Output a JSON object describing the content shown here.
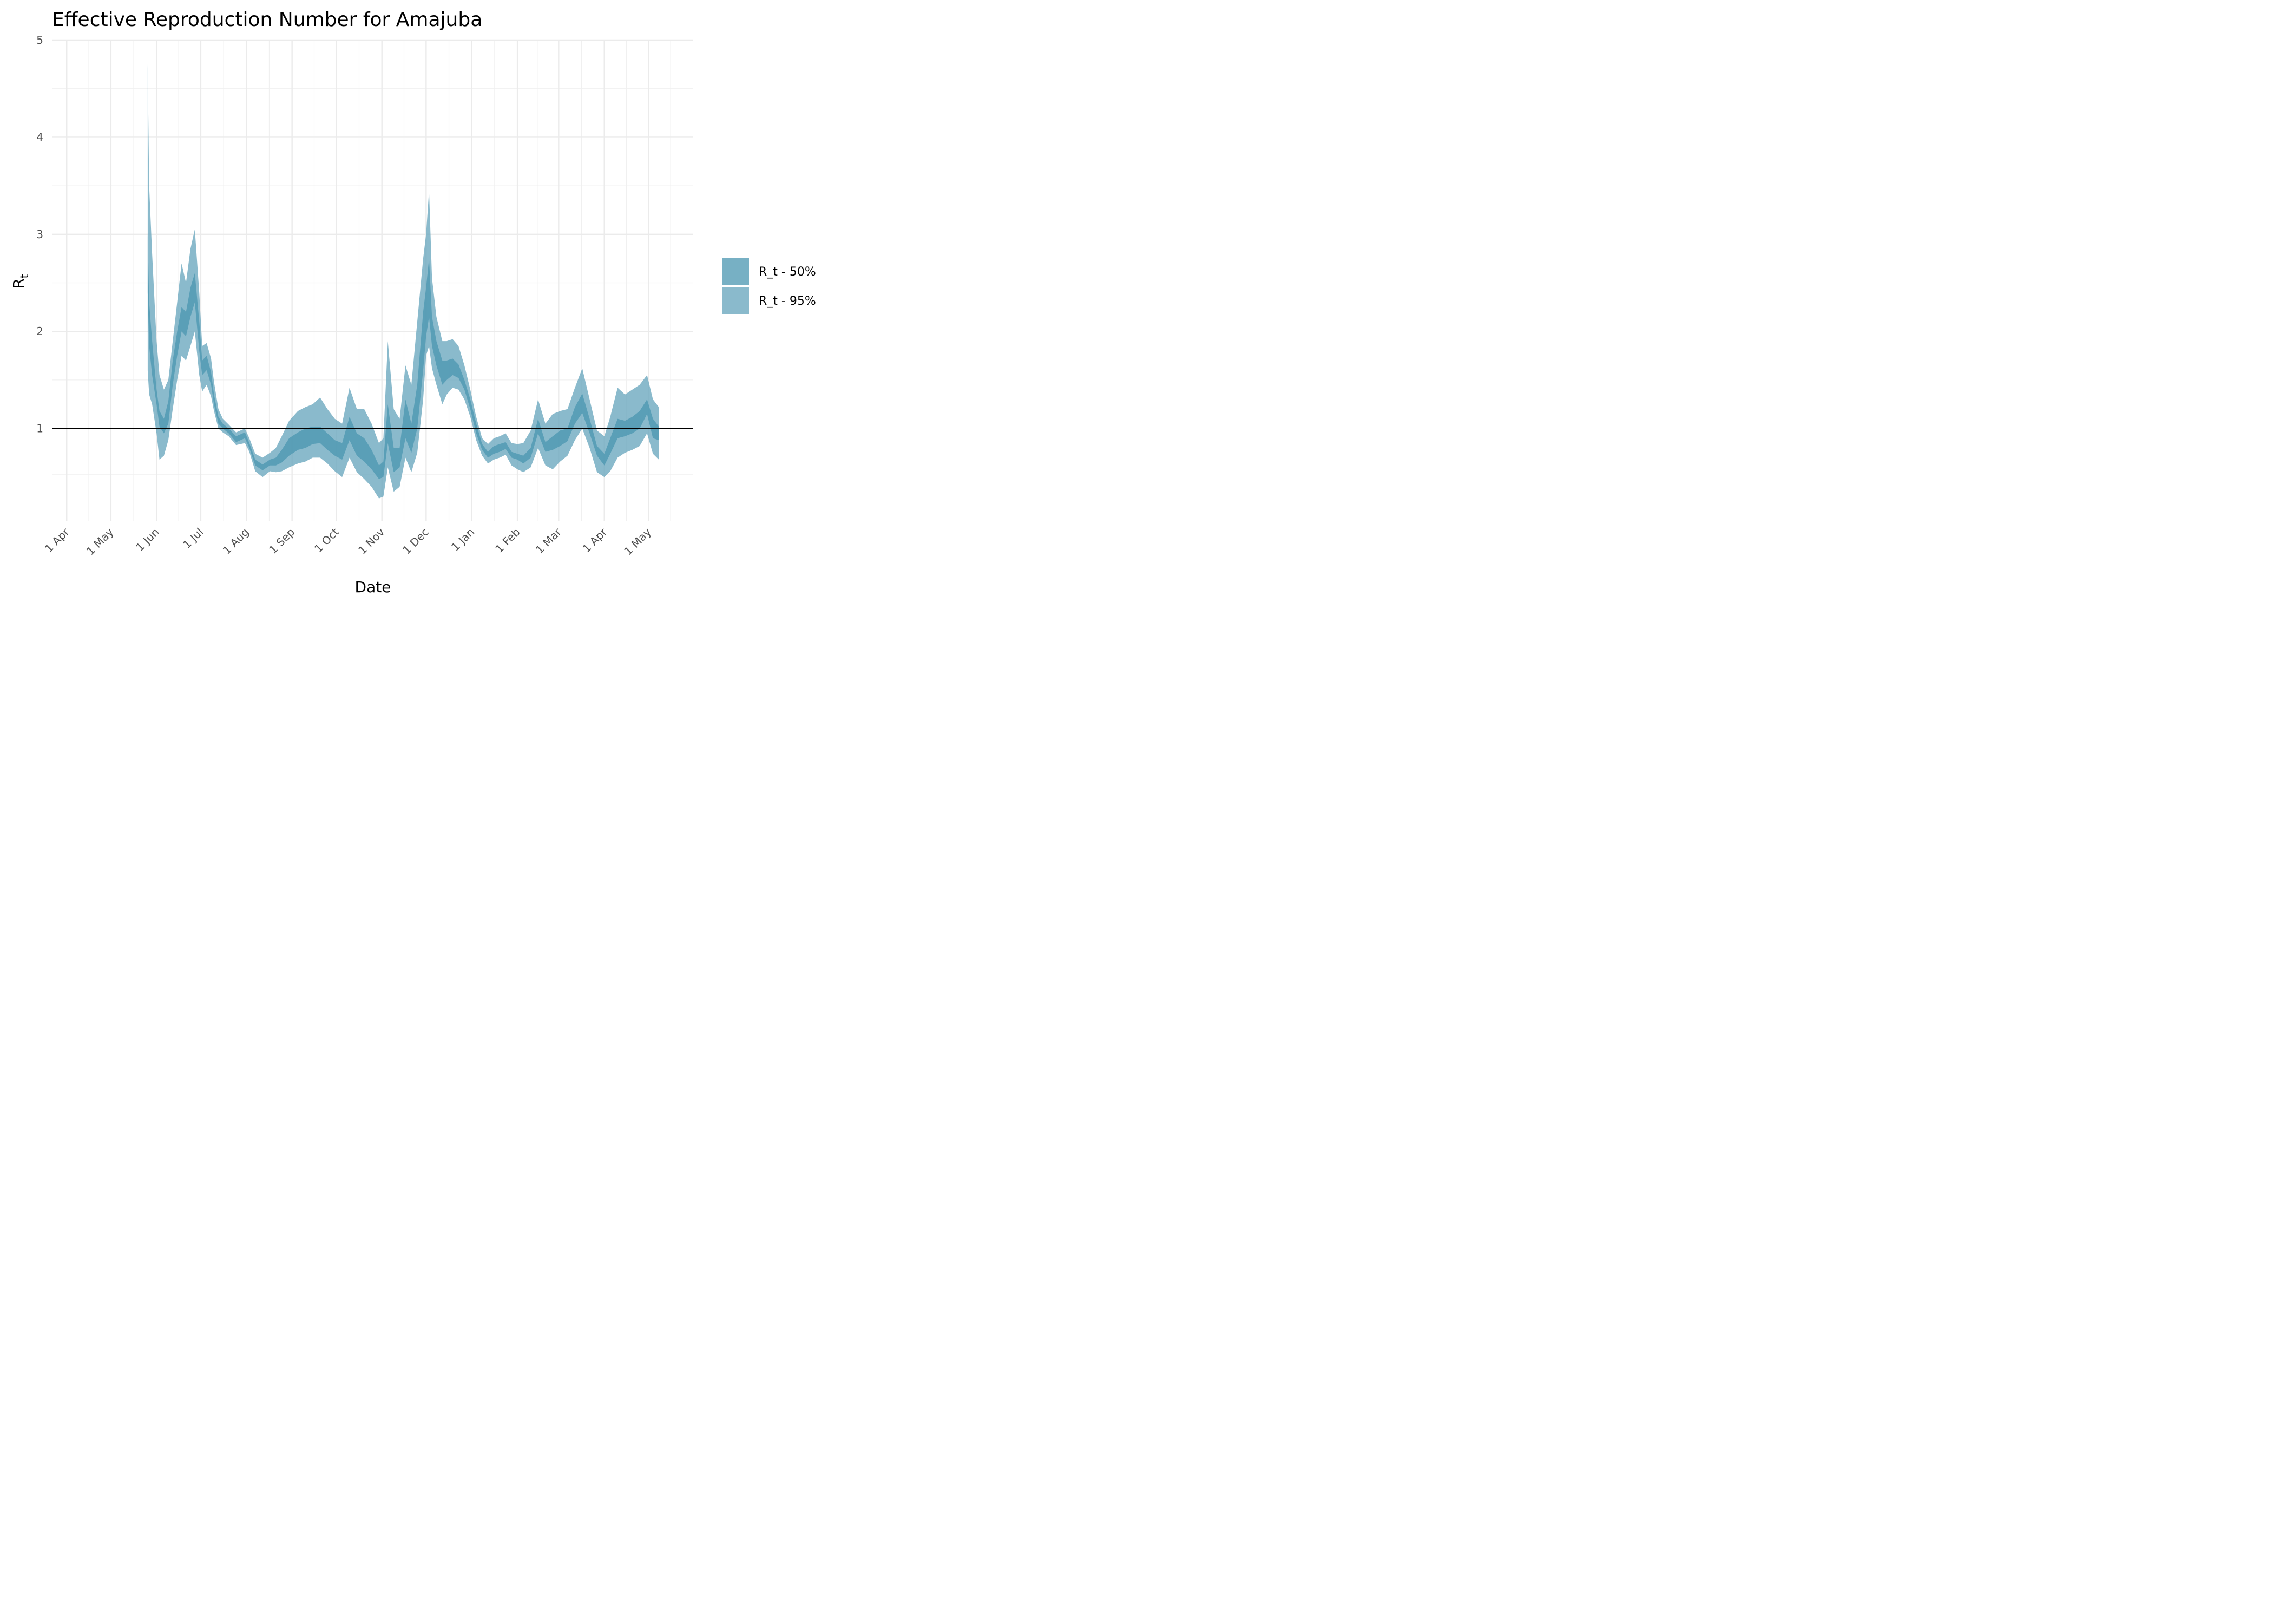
{
  "chart_data": {
    "type": "area",
    "title": "Effective Reproduction Number for Amajuba",
    "xlabel": "Date",
    "ylabel": {
      "main": "R",
      "sub": "t"
    },
    "ylim": [
      0.05,
      5
    ],
    "yticks": [
      1,
      2,
      3,
      4,
      5
    ],
    "xlim": [
      "2020-03-22",
      "2021-05-31"
    ],
    "xticks": [
      {
        "date": "2020-04-01",
        "label": "1 Apr"
      },
      {
        "date": "2020-05-01",
        "label": "1 May"
      },
      {
        "date": "2020-06-01",
        "label": "1 Jun"
      },
      {
        "date": "2020-07-01",
        "label": "1 Jul"
      },
      {
        "date": "2020-08-01",
        "label": "1 Aug"
      },
      {
        "date": "2020-09-01",
        "label": "1 Sep"
      },
      {
        "date": "2020-10-01",
        "label": "1 Oct"
      },
      {
        "date": "2020-11-01",
        "label": "1 Nov"
      },
      {
        "date": "2020-12-01",
        "label": "1 Dec"
      },
      {
        "date": "2021-01-01",
        "label": "1 Jan"
      },
      {
        "date": "2021-02-01",
        "label": "1 Feb"
      },
      {
        "date": "2021-03-01",
        "label": "1 Mar"
      },
      {
        "date": "2021-04-01",
        "label": "1 Apr"
      },
      {
        "date": "2021-05-01",
        "label": "1 May"
      }
    ],
    "grid": true,
    "legend_position": "right",
    "reference_line": {
      "y": 1,
      "color": "#000000"
    },
    "series": [
      {
        "name": "R_t - 50%",
        "color": "#4a96b0",
        "opacity": 0.75,
        "dates": [
          "2020-05-26",
          "2020-05-27",
          "2020-05-29",
          "2020-06-01",
          "2020-06-03",
          "2020-06-06",
          "2020-06-09",
          "2020-06-12",
          "2020-06-15",
          "2020-06-18",
          "2020-06-21",
          "2020-06-24",
          "2020-06-27",
          "2020-06-30",
          "2020-07-02",
          "2020-07-05",
          "2020-07-08",
          "2020-07-10",
          "2020-07-13",
          "2020-07-16",
          "2020-07-20",
          "2020-07-25",
          "2020-07-31",
          "2020-08-03",
          "2020-08-07",
          "2020-08-12",
          "2020-08-17",
          "2020-08-21",
          "2020-08-25",
          "2020-08-30",
          "2020-09-05",
          "2020-09-10",
          "2020-09-15",
          "2020-09-20",
          "2020-09-25",
          "2020-09-30",
          "2020-10-05",
          "2020-10-10",
          "2020-10-15",
          "2020-10-20",
          "2020-10-25",
          "2020-10-30",
          "2020-11-02",
          "2020-11-05",
          "2020-11-09",
          "2020-11-13",
          "2020-11-17",
          "2020-11-21",
          "2020-11-25",
          "2020-11-29",
          "2020-12-01",
          "2020-12-03",
          "2020-12-05",
          "2020-12-08",
          "2020-12-12",
          "2020-12-15",
          "2020-12-19",
          "2020-12-23",
          "2020-12-27",
          "2020-12-31",
          "2021-01-04",
          "2021-01-08",
          "2021-01-12",
          "2021-01-16",
          "2021-01-20",
          "2021-01-24",
          "2021-01-28",
          "2021-02-01",
          "2021-02-05",
          "2021-02-10",
          "2021-02-15",
          "2021-02-20",
          "2021-02-25",
          "2021-03-02",
          "2021-03-07",
          "2021-03-12",
          "2021-03-17",
          "2021-03-22",
          "2021-03-27",
          "2021-04-01",
          "2021-04-05",
          "2021-04-10",
          "2021-04-15",
          "2021-04-20",
          "2021-04-25",
          "2021-04-30",
          "2021-05-04",
          "2021-05-08"
        ],
        "lower": [
          2.4,
          1.85,
          1.55,
          1.25,
          1.02,
          0.95,
          1.05,
          1.45,
          1.75,
          2.0,
          1.95,
          2.15,
          2.3,
          1.8,
          1.55,
          1.6,
          1.45,
          1.25,
          1.05,
          1.0,
          0.95,
          0.86,
          0.9,
          0.8,
          0.62,
          0.57,
          0.62,
          0.62,
          0.65,
          0.72,
          0.78,
          0.8,
          0.84,
          0.85,
          0.78,
          0.72,
          0.68,
          0.88,
          0.72,
          0.66,
          0.58,
          0.48,
          0.5,
          0.85,
          0.55,
          0.6,
          0.9,
          0.75,
          1.0,
          1.6,
          1.95,
          2.15,
          1.85,
          1.65,
          1.45,
          1.5,
          1.55,
          1.52,
          1.4,
          1.2,
          0.95,
          0.78,
          0.7,
          0.74,
          0.76,
          0.79,
          0.7,
          0.68,
          0.64,
          0.7,
          0.95,
          0.76,
          0.78,
          0.82,
          0.87,
          1.05,
          1.16,
          0.95,
          0.72,
          0.62,
          0.74,
          0.9,
          0.92,
          0.95,
          1.0,
          1.15,
          0.9,
          0.88
        ],
        "upper": [
          3.0,
          2.3,
          1.9,
          1.4,
          1.18,
          1.1,
          1.28,
          1.7,
          2.0,
          2.25,
          2.2,
          2.45,
          2.6,
          2.1,
          1.7,
          1.75,
          1.58,
          1.35,
          1.12,
          1.05,
          1.0,
          0.92,
          0.96,
          0.85,
          0.68,
          0.63,
          0.68,
          0.7,
          0.78,
          0.9,
          0.96,
          1.0,
          1.02,
          1.02,
          0.95,
          0.88,
          0.85,
          1.12,
          0.95,
          0.9,
          0.78,
          0.62,
          0.66,
          1.25,
          0.8,
          0.8,
          1.3,
          1.05,
          1.45,
          2.2,
          2.45,
          2.75,
          2.15,
          1.9,
          1.7,
          1.7,
          1.72,
          1.66,
          1.5,
          1.3,
          1.05,
          0.84,
          0.76,
          0.82,
          0.84,
          0.86,
          0.76,
          0.74,
          0.72,
          0.8,
          1.1,
          0.86,
          0.92,
          0.98,
          1.0,
          1.22,
          1.36,
          1.1,
          0.82,
          0.74,
          0.9,
          1.1,
          1.08,
          1.12,
          1.18,
          1.3,
          1.1,
          1.02
        ]
      },
      {
        "name": "R_t - 95%",
        "color": "#6da9bf",
        "opacity": 0.8,
        "dates": [
          "2020-05-26",
          "2020-05-27",
          "2020-05-29",
          "2020-06-01",
          "2020-06-03",
          "2020-06-06",
          "2020-06-09",
          "2020-06-12",
          "2020-06-15",
          "2020-06-18",
          "2020-06-21",
          "2020-06-24",
          "2020-06-27",
          "2020-06-30",
          "2020-07-02",
          "2020-07-05",
          "2020-07-08",
          "2020-07-10",
          "2020-07-13",
          "2020-07-16",
          "2020-07-20",
          "2020-07-25",
          "2020-07-31",
          "2020-08-03",
          "2020-08-07",
          "2020-08-12",
          "2020-08-17",
          "2020-08-21",
          "2020-08-25",
          "2020-08-30",
          "2020-09-05",
          "2020-09-10",
          "2020-09-15",
          "2020-09-20",
          "2020-09-25",
          "2020-09-30",
          "2020-10-05",
          "2020-10-10",
          "2020-10-15",
          "2020-10-20",
          "2020-10-25",
          "2020-10-30",
          "2020-11-02",
          "2020-11-05",
          "2020-11-09",
          "2020-11-13",
          "2020-11-17",
          "2020-11-21",
          "2020-11-25",
          "2020-11-29",
          "2020-12-01",
          "2020-12-03",
          "2020-12-05",
          "2020-12-08",
          "2020-12-12",
          "2020-12-15",
          "2020-12-19",
          "2020-12-23",
          "2020-12-27",
          "2020-12-31",
          "2021-01-04",
          "2021-01-08",
          "2021-01-12",
          "2021-01-16",
          "2021-01-20",
          "2021-01-24",
          "2021-01-28",
          "2021-02-01",
          "2021-02-05",
          "2021-02-10",
          "2021-02-15",
          "2021-02-20",
          "2021-02-25",
          "2021-03-02",
          "2021-03-07",
          "2021-03-12",
          "2021-03-17",
          "2021-03-22",
          "2021-03-27",
          "2021-04-01",
          "2021-04-05",
          "2021-04-10",
          "2021-04-15",
          "2021-04-20",
          "2021-04-25",
          "2021-04-30",
          "2021-05-04",
          "2021-05-08"
        ],
        "lower": [
          1.6,
          1.35,
          1.25,
          0.95,
          0.68,
          0.72,
          0.88,
          1.2,
          1.5,
          1.75,
          1.7,
          1.85,
          2.0,
          1.55,
          1.38,
          1.45,
          1.33,
          1.18,
          1.0,
          0.96,
          0.92,
          0.83,
          0.85,
          0.76,
          0.56,
          0.5,
          0.56,
          0.55,
          0.56,
          0.6,
          0.64,
          0.66,
          0.7,
          0.7,
          0.64,
          0.56,
          0.5,
          0.7,
          0.55,
          0.48,
          0.4,
          0.28,
          0.3,
          0.6,
          0.35,
          0.4,
          0.7,
          0.55,
          0.75,
          1.3,
          1.75,
          1.85,
          1.62,
          1.45,
          1.25,
          1.35,
          1.42,
          1.4,
          1.3,
          1.12,
          0.88,
          0.72,
          0.64,
          0.68,
          0.7,
          0.73,
          0.62,
          0.58,
          0.55,
          0.6,
          0.8,
          0.62,
          0.58,
          0.66,
          0.72,
          0.88,
          1.0,
          0.8,
          0.55,
          0.5,
          0.56,
          0.7,
          0.75,
          0.78,
          0.82,
          0.95,
          0.74,
          0.68
        ],
        "upper": [
          4.75,
          3.5,
          2.8,
          1.9,
          1.55,
          1.4,
          1.5,
          1.9,
          2.3,
          2.7,
          2.5,
          2.85,
          3.05,
          2.4,
          1.85,
          1.88,
          1.72,
          1.48,
          1.2,
          1.1,
          1.04,
          0.96,
          1.0,
          0.9,
          0.74,
          0.7,
          0.75,
          0.8,
          0.92,
          1.08,
          1.18,
          1.22,
          1.25,
          1.32,
          1.2,
          1.1,
          1.05,
          1.42,
          1.2,
          1.2,
          1.05,
          0.85,
          0.9,
          1.9,
          1.2,
          1.1,
          1.65,
          1.45,
          2.1,
          2.75,
          3.0,
          3.45,
          2.55,
          2.15,
          1.9,
          1.9,
          1.92,
          1.85,
          1.65,
          1.4,
          1.12,
          0.9,
          0.84,
          0.9,
          0.92,
          0.95,
          0.85,
          0.84,
          0.85,
          0.98,
          1.3,
          1.05,
          1.15,
          1.18,
          1.2,
          1.42,
          1.62,
          1.3,
          0.98,
          0.92,
          1.12,
          1.42,
          1.35,
          1.4,
          1.45,
          1.55,
          1.3,
          1.22
        ]
      }
    ]
  }
}
